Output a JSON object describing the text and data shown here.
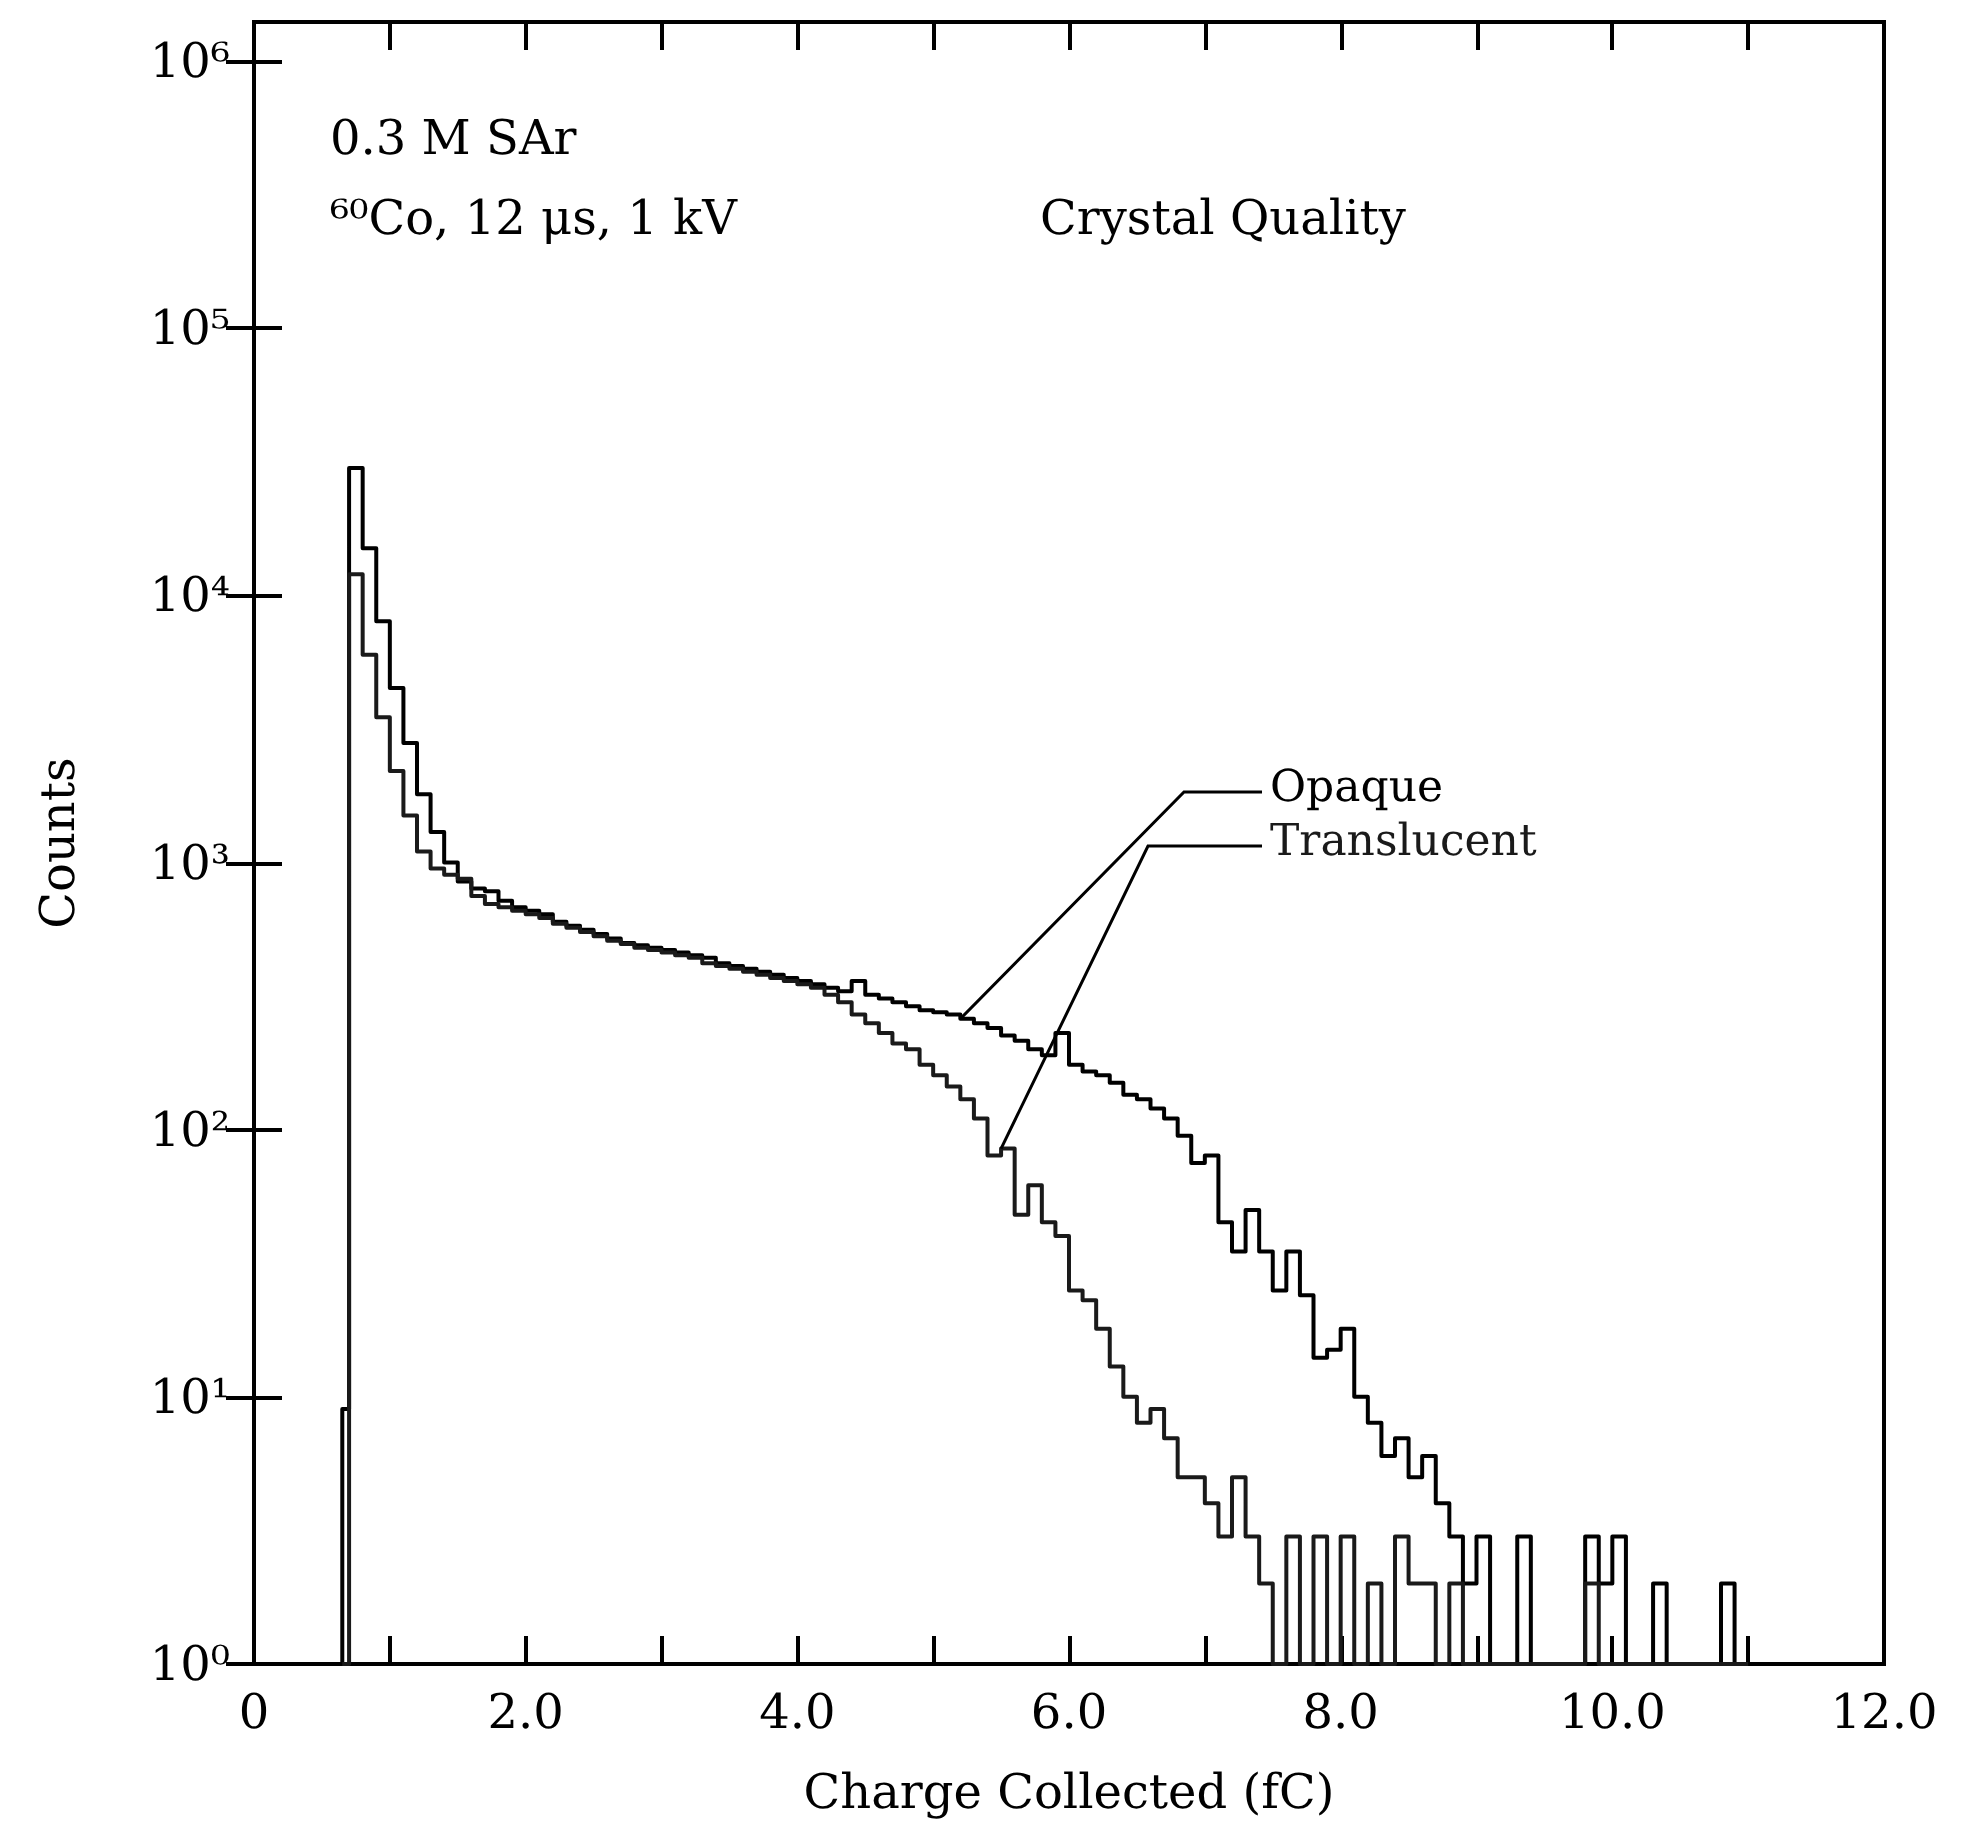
{
  "chart_data": {
    "type": "histogram",
    "xlabel": "Charge Collected (fC)",
    "ylabel": "Counts",
    "annotations": [
      "0.3 M SAr",
      "⁶⁰Co, 12 μs, 1 kV",
      "Crystal Quality"
    ],
    "bins": [
      0.65,
      0.7,
      0.8,
      0.9,
      1.0,
      1.1,
      1.2,
      1.3,
      1.4,
      1.5,
      1.6,
      1.7,
      1.8,
      1.9,
      2.0,
      2.1,
      2.2,
      2.3,
      2.4,
      2.5,
      2.6,
      2.7,
      2.8,
      2.9,
      3.0,
      3.1,
      3.2,
      3.3,
      3.4,
      3.5,
      3.6,
      3.7,
      3.8,
      3.9,
      4.0,
      4.1,
      4.2,
      4.3,
      4.4,
      4.5,
      4.6,
      4.7,
      4.8,
      4.9,
      5.0,
      5.1,
      5.2,
      5.3,
      5.4,
      5.5,
      5.6,
      5.7,
      5.8,
      5.9,
      6.0,
      6.1,
      6.2,
      6.3,
      6.4,
      6.5,
      6.6,
      6.7,
      6.8,
      6.9,
      7.0,
      7.1,
      7.2,
      7.3,
      7.4,
      7.5,
      7.6,
      7.7,
      7.8,
      7.9,
      8.0,
      8.1,
      8.2,
      8.3,
      8.4,
      8.5,
      8.6,
      8.7,
      8.8,
      8.9,
      9.0,
      9.1,
      9.2,
      9.3,
      9.4,
      9.5,
      9.6,
      9.7,
      9.8,
      9.9,
      10.0,
      10.1,
      10.2,
      10.3,
      10.4,
      10.5,
      10.6,
      10.7,
      10.8,
      10.9,
      11.0
    ],
    "series": [
      {
        "name": "Opaque",
        "color": "#000000",
        "values": [
          9,
          30000,
          15000,
          8000,
          4500,
          2800,
          1800,
          1300,
          1000,
          850,
          800,
          780,
          720,
          680,
          660,
          640,
          600,
          580,
          560,
          540,
          520,
          500,
          490,
          480,
          470,
          460,
          450,
          440,
          420,
          410,
          400,
          390,
          380,
          370,
          360,
          350,
          340,
          330,
          360,
          320,
          310,
          300,
          290,
          280,
          275,
          270,
          260,
          250,
          240,
          225,
          215,
          200,
          190,
          230,
          175,
          165,
          160,
          150,
          135,
          130,
          120,
          110,
          95,
          75,
          80,
          45,
          35,
          50,
          35,
          25,
          35,
          24,
          14,
          15,
          18,
          10,
          8,
          6,
          7,
          5,
          6,
          4,
          3,
          2,
          3,
          null,
          null,
          3,
          null,
          null,
          null,
          null,
          3,
          2,
          3,
          null,
          null,
          2,
          null,
          null,
          null,
          null,
          2,
          null
        ]
      },
      {
        "name": "Translucent",
        "color": "#1a1a1a",
        "values": [
          null,
          12000,
          6000,
          3500,
          2200,
          1500,
          1100,
          950,
          900,
          870,
          750,
          700,
          680,
          660,
          640,
          620,
          590,
          570,
          550,
          530,
          510,
          495,
          480,
          470,
          460,
          450,
          440,
          420,
          410,
          400,
          390,
          380,
          370,
          360,
          350,
          340,
          320,
          300,
          270,
          250,
          230,
          210,
          200,
          175,
          160,
          145,
          130,
          110,
          80,
          85,
          48,
          62,
          45,
          40,
          25,
          23,
          18,
          13,
          10,
          8,
          9,
          7,
          5,
          5,
          4,
          3,
          5,
          3,
          2,
          null,
          3,
          null,
          3,
          null,
          3,
          null,
          2,
          null,
          3,
          2,
          2,
          null,
          2,
          null,
          null,
          null,
          null,
          null,
          null,
          null,
          null,
          null,
          2,
          null,
          null,
          null,
          null,
          null,
          null,
          null,
          null,
          null,
          null,
          null
        ]
      }
    ],
    "xlim": [
      0,
      12
    ],
    "xticks": [
      0,
      {
        "value": 1,
        "label": null
      },
      {
        "value": 2,
        "label": "2.0"
      },
      {
        "value": 3,
        "label": null
      },
      {
        "value": 4,
        "label": "4.0"
      },
      {
        "value": 5,
        "label": null
      },
      {
        "value": 6,
        "label": "6.0"
      },
      {
        "value": 7,
        "label": null
      },
      {
        "value": 8,
        "label": "8.0"
      },
      {
        "value": 9,
        "label": null
      },
      {
        "value": 10,
        "label": "10.0"
      },
      {
        "value": 11,
        "label": null
      },
      {
        "value": 12,
        "label": "12.0"
      }
    ],
    "ylim": [
      1,
      1400000
    ],
    "yticks": [
      {
        "value": 1,
        "label": "10⁰"
      },
      {
        "value": 10,
        "label": "10¹"
      },
      {
        "value": 100,
        "label": "10²"
      },
      {
        "value": 1000,
        "label": "10³"
      },
      {
        "value": 10000,
        "label": "10⁴"
      },
      {
        "value": 100000,
        "label": "10⁵"
      },
      {
        "value": 1000000,
        "label": "10⁶"
      }
    ],
    "log": "y",
    "grid": false,
    "legend": false
  }
}
